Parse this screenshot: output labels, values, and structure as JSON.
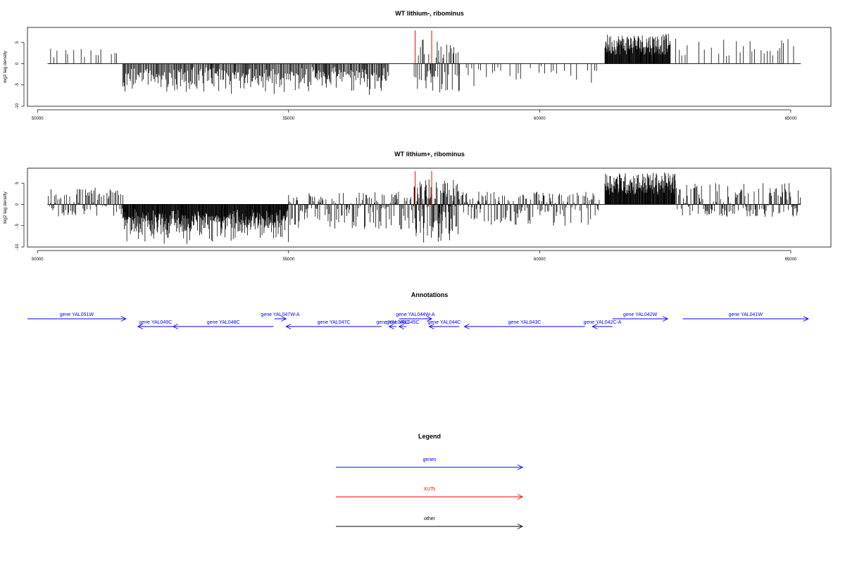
{
  "chart_data": [
    {
      "type": "bar",
      "title": "WT lithium-, ribominus",
      "ylabel": "log2 tag density",
      "xlabel": "",
      "xlim": [
        49800,
        65800
      ],
      "ylim": [
        -10,
        8.5
      ],
      "x_ticks": [
        "50000",
        "55000",
        "60000",
        "65000"
      ],
      "y_ticks": [
        "5",
        "0",
        "-5",
        "-10"
      ],
      "grid": false,
      "series": [
        {
          "color": "#000000",
          "description_regions": [
            {
              "x_from": 50200,
              "x_to": 51700,
              "max": 3.5,
              "sparse": true
            },
            {
              "x_from": 51700,
              "x_to": 57000,
              "min": -5.5,
              "negative": true
            },
            {
              "x_from": 57500,
              "x_to": 58400,
              "min": -7,
              "max": 6,
              "mixed": true
            },
            {
              "x_from": 58400,
              "x_to": 61200,
              "min": -4,
              "negative": true,
              "sparse": true
            },
            {
              "x_from": 61300,
              "x_to": 62600,
              "max": 7,
              "dense": true
            },
            {
              "x_from": 62600,
              "x_to": 65200,
              "max": 6,
              "sparse": true
            }
          ]
        },
        {
          "color": "#ff0000",
          "spikes": [
            {
              "x": 57520,
              "y": 7.8
            },
            {
              "x": 57850,
              "y": 7.8
            }
          ]
        }
      ]
    },
    {
      "type": "bar",
      "title": "WT lithium+, ribominus",
      "ylabel": "log2 tag density",
      "xlabel": "",
      "xlim": [
        49800,
        65800
      ],
      "ylim": [
        -10,
        8.5
      ],
      "x_ticks": [
        "50000",
        "55000",
        "60000",
        "65000"
      ],
      "y_ticks": [
        "5",
        "0",
        "-5",
        "-10"
      ],
      "grid": false,
      "series": [
        {
          "color": "#000000",
          "description_regions": [
            {
              "x_from": 50200,
              "x_to": 51700,
              "max": 4,
              "mixed": true
            },
            {
              "x_from": 51700,
              "x_to": 55000,
              "min": -7,
              "negative": true,
              "dense": true
            },
            {
              "x_from": 55000,
              "x_to": 57500,
              "min": -6,
              "mixed": true
            },
            {
              "x_from": 57500,
              "x_to": 58400,
              "min": -9,
              "max": 6,
              "mixed": true,
              "dense": true
            },
            {
              "x_from": 58400,
              "x_to": 61200,
              "min": -5,
              "max": 3,
              "mixed": true
            },
            {
              "x_from": 61300,
              "x_to": 62700,
              "max": 7.5,
              "dense": true
            },
            {
              "x_from": 62700,
              "x_to": 65200,
              "max": 5,
              "mixed": true
            }
          ]
        },
        {
          "color": "#ff0000",
          "spikes": [
            {
              "x": 57520,
              "y": 7.8
            },
            {
              "x": 57850,
              "y": 7.8
            }
          ]
        }
      ]
    }
  ],
  "annotations": {
    "title": "Annotations",
    "genes": [
      {
        "label": "gene YAL051W",
        "start": 49800,
        "end": 51760,
        "strand": "+",
        "row": 0
      },
      {
        "label": "gene YAL049C",
        "start": 52000,
        "end": 52700,
        "strand": "-",
        "row": 1
      },
      {
        "label": "gene YAL048C",
        "start": 52700,
        "end": 54700,
        "strand": "-",
        "row": 1
      },
      {
        "label": "gene YAL047W-A",
        "start": 54720,
        "end": 54950,
        "strand": "+",
        "row": 0
      },
      {
        "label": "gene YAL047C",
        "start": 54950,
        "end": 56850,
        "strand": "-",
        "row": 1
      },
      {
        "label": "gene YAL044W-A",
        "start": 57200,
        "end": 57850,
        "strand": "+",
        "row": 0
      },
      {
        "label": "gene YAL046C",
        "start": 57000,
        "end": 57150,
        "strand": "-",
        "row": 1
      },
      {
        "label": "gene YAL045C",
        "start": 57200,
        "end": 57350,
        "strand": "-",
        "row": 1
      },
      {
        "label": "gene YAL044C",
        "start": 57800,
        "end": 58400,
        "strand": "-",
        "row": 1
      },
      {
        "label": "gene YAL043C",
        "start": 58500,
        "end": 60900,
        "strand": "-",
        "row": 1
      },
      {
        "label": "gene YAL042C-A",
        "start": 61050,
        "end": 61450,
        "strand": "-",
        "row": 1
      },
      {
        "label": "gene YAL042W",
        "start": 61450,
        "end": 62550,
        "strand": "+",
        "row": 0
      },
      {
        "label": "gene YAL041W",
        "start": 62850,
        "end": 65350,
        "strand": "+",
        "row": 0
      }
    ],
    "sub_labels": [
      "gene YAL046C",
      "gene YAL045C"
    ]
  },
  "legend": {
    "title": "Legend",
    "items": [
      {
        "label": "genes",
        "color": "#0000ff"
      },
      {
        "label": "XUTs",
        "color": "#ff0000"
      },
      {
        "label": "other",
        "color": "#000000"
      }
    ]
  }
}
